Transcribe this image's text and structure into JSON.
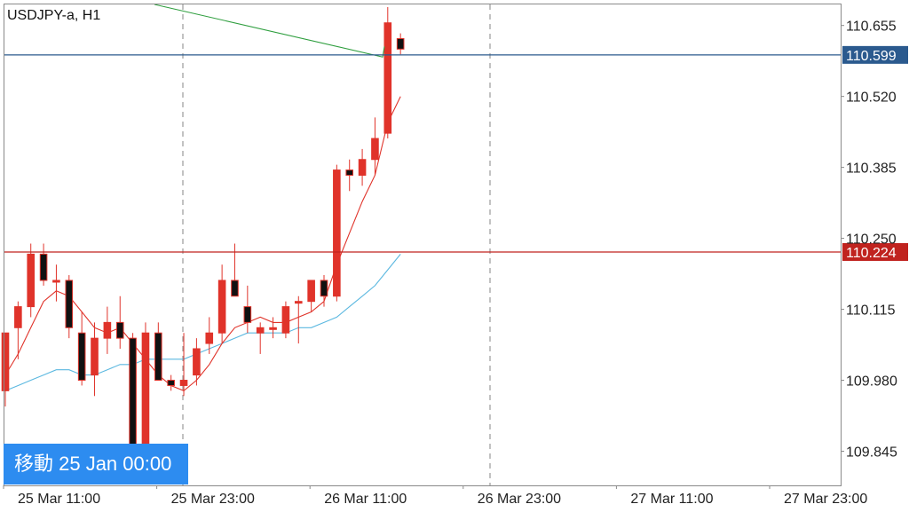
{
  "symbol_label": "USDJPY-a, H1",
  "goto_button": "移動 25 Jan 00:00",
  "chart_data": {
    "type": "candlestick",
    "symbol": "USDJPY-a",
    "timeframe": "H1",
    "y_ticks": [
      "110.655",
      "110.520",
      "110.385",
      "110.250",
      "110.115",
      "109.980",
      "109.845"
    ],
    "x_ticks": [
      "25 Mar 11:00",
      "25 Mar 23:00",
      "26 Mar 11:00",
      "26 Mar 23:00",
      "27 Mar 11:00",
      "27 Mar 23:00"
    ],
    "ylim": [
      109.78,
      110.695
    ],
    "price_lines": [
      {
        "label": "110.599",
        "value": 110.599,
        "color": "#2b5a8e"
      },
      {
        "label": "110.224",
        "value": 110.224,
        "color": "#c0231f"
      }
    ],
    "candles": [
      {
        "o": 109.96,
        "h": 110.07,
        "l": 109.93,
        "c": 110.07
      },
      {
        "o": 110.08,
        "h": 110.13,
        "l": 110.02,
        "c": 110.12
      },
      {
        "o": 110.12,
        "h": 110.24,
        "l": 110.1,
        "c": 110.22
      },
      {
        "o": 110.22,
        "h": 110.24,
        "l": 110.16,
        "c": 110.17
      },
      {
        "o": 110.17,
        "h": 110.2,
        "l": 110.13,
        "c": 110.17
      },
      {
        "o": 110.17,
        "h": 110.18,
        "l": 110.06,
        "c": 110.08
      },
      {
        "o": 110.07,
        "h": 110.11,
        "l": 109.97,
        "c": 109.98
      },
      {
        "o": 109.99,
        "h": 110.09,
        "l": 109.95,
        "c": 110.06
      },
      {
        "o": 110.06,
        "h": 110.12,
        "l": 110.03,
        "c": 110.09
      },
      {
        "o": 110.09,
        "h": 110.14,
        "l": 110.04,
        "c": 110.06
      },
      {
        "o": 110.06,
        "h": 110.07,
        "l": 109.83,
        "c": 109.83
      },
      {
        "o": 109.84,
        "h": 110.09,
        "l": 109.82,
        "c": 110.07
      },
      {
        "o": 110.07,
        "h": 110.09,
        "l": 109.98,
        "c": 109.98
      },
      {
        "o": 109.98,
        "h": 109.99,
        "l": 109.96,
        "c": 109.97
      },
      {
        "o": 109.97,
        "h": 110.07,
        "l": 109.95,
        "c": 109.98
      },
      {
        "o": 109.99,
        "h": 110.06,
        "l": 109.97,
        "c": 110.04
      },
      {
        "o": 110.05,
        "h": 110.1,
        "l": 110.03,
        "c": 110.07
      },
      {
        "o": 110.07,
        "h": 110.2,
        "l": 110.05,
        "c": 110.17
      },
      {
        "o": 110.17,
        "h": 110.24,
        "l": 110.14,
        "c": 110.14
      },
      {
        "o": 110.12,
        "h": 110.16,
        "l": 110.07,
        "c": 110.09
      },
      {
        "o": 110.07,
        "h": 110.09,
        "l": 110.03,
        "c": 110.08
      },
      {
        "o": 110.08,
        "h": 110.1,
        "l": 110.06,
        "c": 110.08
      },
      {
        "o": 110.07,
        "h": 110.13,
        "l": 110.06,
        "c": 110.12
      },
      {
        "o": 110.13,
        "h": 110.14,
        "l": 110.05,
        "c": 110.13
      },
      {
        "o": 110.13,
        "h": 110.17,
        "l": 110.11,
        "c": 110.17
      },
      {
        "o": 110.17,
        "h": 110.18,
        "l": 110.12,
        "c": 110.14
      },
      {
        "o": 110.14,
        "h": 110.39,
        "l": 110.13,
        "c": 110.38
      },
      {
        "o": 110.38,
        "h": 110.4,
        "l": 110.34,
        "c": 110.37
      },
      {
        "o": 110.37,
        "h": 110.42,
        "l": 110.35,
        "c": 110.4
      },
      {
        "o": 110.4,
        "h": 110.48,
        "l": 110.37,
        "c": 110.44
      },
      {
        "o": 110.45,
        "h": 110.69,
        "l": 110.44,
        "c": 110.66
      },
      {
        "o": 110.63,
        "h": 110.64,
        "l": 110.6,
        "c": 110.61
      }
    ],
    "ma_red": [
      109.99,
      110.03,
      110.08,
      110.13,
      110.15,
      110.14,
      110.11,
      110.08,
      110.07,
      110.08,
      110.05,
      110.02,
      109.99,
      109.97,
      109.96,
      109.98,
      110.01,
      110.05,
      110.08,
      110.09,
      110.1,
      110.09,
      110.09,
      110.1,
      110.11,
      110.13,
      110.2,
      110.26,
      110.32,
      110.37,
      110.47,
      110.52
    ],
    "ma_blue": [
      109.96,
      109.97,
      109.98,
      109.99,
      110.0,
      110.0,
      109.99,
      109.99,
      110.0,
      110.01,
      110.01,
      110.02,
      110.02,
      110.02,
      110.02,
      110.03,
      110.04,
      110.05,
      110.06,
      110.07,
      110.07,
      110.07,
      110.07,
      110.08,
      110.08,
      110.09,
      110.1,
      110.12,
      110.14,
      110.16,
      110.19,
      110.22
    ],
    "trend_line": {
      "from": {
        "t": 11.7,
        "v": 110.695
      },
      "to": {
        "t": 29.6,
        "v": 110.595
      },
      "hook": 110.615
    }
  }
}
